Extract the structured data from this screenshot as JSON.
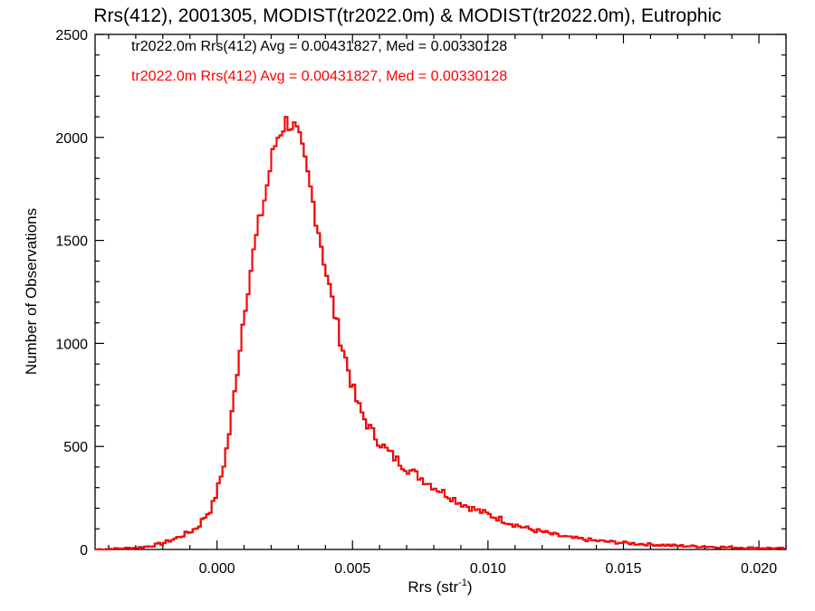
{
  "chart_data": {
    "type": "histogram",
    "title": "Rrs(412), 2001305, MODIST(tr2022.0m) & MODIST(tr2022.0m), Eutrophic",
    "xlabel_main": "Rrs (str",
    "xlabel_sup": "-1",
    "xlabel_end": ")",
    "ylabel": "Number of Observations",
    "xlim": [
      -0.0045,
      0.021
    ],
    "ylim": [
      0,
      2500
    ],
    "x_ticks": [
      0.0,
      0.005,
      0.01,
      0.015,
      0.02
    ],
    "x_tick_labels": [
      "0.000",
      "0.005",
      "0.010",
      "0.015",
      "0.020"
    ],
    "y_ticks": [
      0,
      500,
      1000,
      1500,
      2000,
      2500
    ],
    "y_tick_labels": [
      "0",
      "500",
      "1000",
      "1500",
      "2000",
      "2500"
    ],
    "grid": false,
    "legend_placement": "top-left",
    "series": [
      {
        "name": "tr2022.0m Rrs(412) Avg = 0.00431827, Med = 0.00330128",
        "color": "#000000"
      },
      {
        "name": "tr2022.0m Rrs(412) Avg = 0.00431827, Med = 0.00330128",
        "color": "#ff0000"
      }
    ],
    "points": [
      [
        -0.0045,
        0
      ],
      [
        -0.0035,
        5
      ],
      [
        -0.003,
        8
      ],
      [
        -0.0025,
        15
      ],
      [
        -0.002,
        30
      ],
      [
        -0.0015,
        55
      ],
      [
        -0.001,
        85
      ],
      [
        -0.0007,
        110
      ],
      [
        -0.0005,
        150
      ],
      [
        -0.0002,
        200
      ],
      [
        0.0,
        280
      ],
      [
        0.0002,
        380
      ],
      [
        0.0004,
        520
      ],
      [
        0.0006,
        700
      ],
      [
        0.0008,
        930
      ],
      [
        0.001,
        1150
      ],
      [
        0.0012,
        1320
      ],
      [
        0.0014,
        1480
      ],
      [
        0.0016,
        1610
      ],
      [
        0.0018,
        1730
      ],
      [
        0.002,
        1880
      ],
      [
        0.0022,
        1990
      ],
      [
        0.0024,
        2050
      ],
      [
        0.0026,
        2080
      ],
      [
        0.0028,
        2060
      ],
      [
        0.003,
        2000
      ],
      [
        0.0032,
        1900
      ],
      [
        0.0034,
        1780
      ],
      [
        0.0036,
        1650
      ],
      [
        0.0038,
        1520
      ],
      [
        0.004,
        1370
      ],
      [
        0.0042,
        1240
      ],
      [
        0.0044,
        1110
      ],
      [
        0.0046,
        1000
      ],
      [
        0.0048,
        900
      ],
      [
        0.005,
        790
      ],
      [
        0.0052,
        700
      ],
      [
        0.0055,
        620
      ],
      [
        0.0058,
        555
      ],
      [
        0.0062,
        490
      ],
      [
        0.0066,
        440
      ],
      [
        0.007,
        395
      ],
      [
        0.0075,
        350
      ],
      [
        0.008,
        305
      ],
      [
        0.0085,
        265
      ],
      [
        0.009,
        225
      ],
      [
        0.0095,
        195
      ],
      [
        0.01,
        170
      ],
      [
        0.0105,
        145
      ],
      [
        0.011,
        120
      ],
      [
        0.0115,
        100
      ],
      [
        0.012,
        85
      ],
      [
        0.0125,
        70
      ],
      [
        0.013,
        57
      ],
      [
        0.014,
        42
      ],
      [
        0.015,
        32
      ],
      [
        0.016,
        24
      ],
      [
        0.017,
        18
      ],
      [
        0.018,
        14
      ],
      [
        0.019,
        10
      ],
      [
        0.02,
        7
      ],
      [
        0.021,
        5
      ]
    ]
  }
}
